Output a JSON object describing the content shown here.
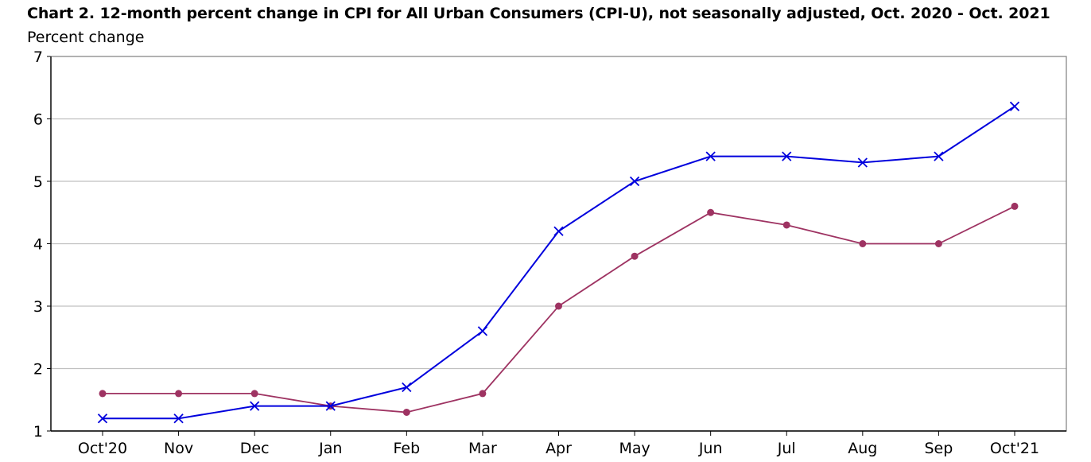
{
  "chart_data": {
    "type": "line",
    "title": "Chart 2. 12-month percent change in CPI for All Urban Consumers (CPI-U), not seasonally adjusted, Oct. 2020 - Oct. 2021",
    "xlabel": "",
    "ylabel": "Percent change",
    "categories": [
      "Oct'20",
      "Nov",
      "Dec",
      "Jan",
      "Feb",
      "Mar",
      "Apr",
      "May",
      "Jun",
      "Jul",
      "Aug",
      "Sep",
      "Oct'21"
    ],
    "yticks": [
      "1",
      "2",
      "3",
      "4",
      "5",
      "6",
      "7"
    ],
    "ylim": [
      1,
      7
    ],
    "grid": true,
    "legend": "none",
    "series": [
      {
        "color": "#0000dd",
        "marker": "x",
        "values": [
          1.2,
          1.2,
          1.4,
          1.4,
          1.7,
          2.6,
          4.2,
          5.0,
          5.4,
          5.4,
          5.3,
          5.4,
          6.2
        ]
      },
      {
        "color": "#9e3362",
        "marker": "dot",
        "values": [
          1.6,
          1.6,
          1.6,
          1.4,
          1.3,
          1.6,
          3.0,
          3.8,
          4.5,
          4.3,
          4.0,
          4.0,
          4.6
        ]
      }
    ]
  }
}
